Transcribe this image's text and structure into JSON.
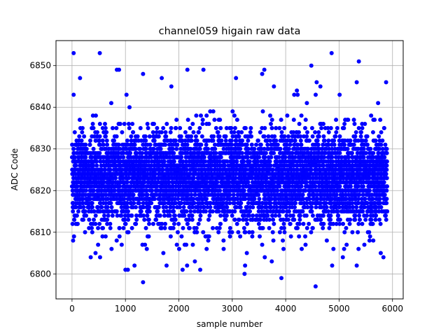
{
  "chart_data": {
    "type": "scatter",
    "title": "channel059 higain raw data",
    "xlabel": "sample number",
    "ylabel": "ADC Code",
    "xlim": [
      -300,
      6200
    ],
    "ylim": [
      6794,
      6856
    ],
    "xticks": [
      0,
      1000,
      2000,
      3000,
      4000,
      5000,
      6000
    ],
    "yticks": [
      6800,
      6810,
      6820,
      6830,
      6840,
      6850
    ],
    "grid": true,
    "series": [
      {
        "color": "#0000ff",
        "marker": "circle",
        "band": {
          "x_start": 0,
          "x_end": 5900,
          "count": 5900,
          "center": 6823,
          "spread": 5.5,
          "min": 6797,
          "max": 6853
        },
        "points": [
          {
            "x": 30,
            "y": 6853
          },
          {
            "x": 520,
            "y": 6853
          },
          {
            "x": 4860,
            "y": 6853
          },
          {
            "x": 5370,
            "y": 6851
          },
          {
            "x": 4480,
            "y": 6850
          },
          {
            "x": 840,
            "y": 6849
          },
          {
            "x": 880,
            "y": 6849
          },
          {
            "x": 2160,
            "y": 6849
          },
          {
            "x": 2460,
            "y": 6849
          },
          {
            "x": 3600,
            "y": 6849
          },
          {
            "x": 1330,
            "y": 6848
          },
          {
            "x": 3560,
            "y": 6848
          },
          {
            "x": 150,
            "y": 6847
          },
          {
            "x": 1680,
            "y": 6847
          },
          {
            "x": 3070,
            "y": 6847
          },
          {
            "x": 4580,
            "y": 6846
          },
          {
            "x": 5330,
            "y": 6846
          },
          {
            "x": 5880,
            "y": 6846
          },
          {
            "x": 1860,
            "y": 6845
          },
          {
            "x": 3780,
            "y": 6845
          },
          {
            "x": 4650,
            "y": 6845
          },
          {
            "x": 4210,
            "y": 6844
          },
          {
            "x": 1020,
            "y": 6843
          },
          {
            "x": 30,
            "y": 6843
          },
          {
            "x": 4160,
            "y": 6843
          },
          {
            "x": 5010,
            "y": 6843
          },
          {
            "x": 1000,
            "y": 6801
          },
          {
            "x": 2070,
            "y": 6801
          },
          {
            "x": 2400,
            "y": 6801
          },
          {
            "x": 1330,
            "y": 6798
          },
          {
            "x": 3230,
            "y": 6800
          },
          {
            "x": 3920,
            "y": 6799
          },
          {
            "x": 4560,
            "y": 6797
          },
          {
            "x": 3240,
            "y": 6802
          },
          {
            "x": 4870,
            "y": 6802
          },
          {
            "x": 5330,
            "y": 6802
          },
          {
            "x": 1170,
            "y": 6802
          },
          {
            "x": 1770,
            "y": 6802
          },
          {
            "x": 3740,
            "y": 6803
          },
          {
            "x": 2300,
            "y": 6803
          },
          {
            "x": 1710,
            "y": 6805
          },
          {
            "x": 5070,
            "y": 6804
          },
          {
            "x": 5830,
            "y": 6804
          },
          {
            "x": 5780,
            "y": 6805
          },
          {
            "x": 3560,
            "y": 6807
          },
          {
            "x": 5640,
            "y": 6808
          },
          {
            "x": 20,
            "y": 6808
          },
          {
            "x": 4770,
            "y": 6808
          },
          {
            "x": 2520,
            "y": 6806
          },
          {
            "x": 4300,
            "y": 6806
          },
          {
            "x": 440,
            "y": 6805
          },
          {
            "x": 740,
            "y": 6806
          },
          {
            "x": 1400,
            "y": 6806
          }
        ]
      }
    ]
  }
}
